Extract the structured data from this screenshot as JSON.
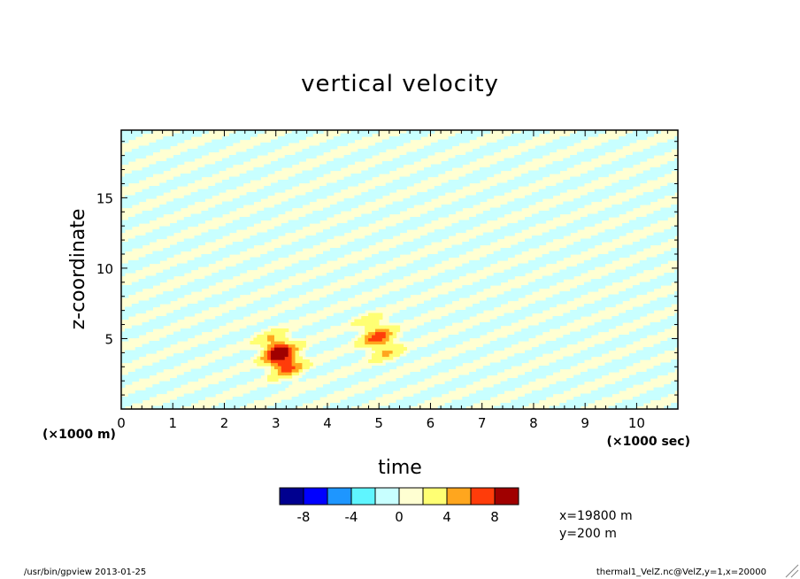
{
  "chart_data": {
    "type": "heatmap",
    "title": "vertical velocity",
    "xlabel": "time",
    "ylabel": "z-coordinate",
    "x_unit": "(×1000 sec)",
    "y_unit": "(×1000 m)",
    "xlim": [
      0,
      10.8
    ],
    "ylim": [
      0,
      19.8
    ],
    "x_ticks": [
      0,
      1,
      2,
      3,
      4,
      5,
      6,
      7,
      8,
      9,
      10
    ],
    "x_tick_labels": [
      "0",
      "1",
      "2",
      "3",
      "4",
      "5",
      "6",
      "7",
      "8",
      "9",
      "10"
    ],
    "y_ticks": [
      5,
      10,
      15
    ],
    "y_tick_labels": [
      "5",
      "10",
      "15"
    ],
    "colorbar": {
      "levels": [
        -10,
        -8,
        -6,
        -4,
        -2,
        0,
        2,
        4,
        6,
        8,
        10
      ],
      "colors": [
        "#00008f",
        "#0000ff",
        "#1e96ff",
        "#5ff5ff",
        "#c8ffff",
        "#ffffd2",
        "#ffff73",
        "#ffa61e",
        "#ff3c0a",
        "#a00000"
      ],
      "labels": [
        "-8",
        "-4",
        "0",
        "4",
        "8"
      ],
      "label_values": [
        -8,
        -4,
        0,
        4,
        8
      ]
    },
    "features": [
      {
        "kind": "updraft",
        "t": 3.1,
        "z": 3.8,
        "peak": 9.5
      },
      {
        "kind": "updraft",
        "t": 5.0,
        "z": 5.0,
        "peak": 6.0
      },
      {
        "kind": "wave",
        "note": "alternating weak bands"
      }
    ]
  },
  "info": {
    "x_text": "x=19800 m",
    "y_text": "y=200 m"
  },
  "footer": {
    "left": "/usr/bin/gpview  2013-01-25",
    "right": "thermal1_VelZ.nc@VelZ,y=1,x=20000"
  }
}
